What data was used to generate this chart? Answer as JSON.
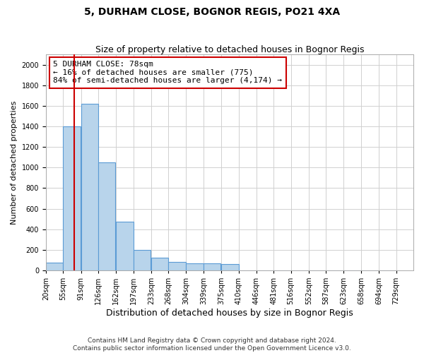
{
  "title": "5, DURHAM CLOSE, BOGNOR REGIS, PO21 4XA",
  "subtitle": "Size of property relative to detached houses in Bognor Regis",
  "xlabel": "Distribution of detached houses by size in Bognor Regis",
  "ylabel": "Number of detached properties",
  "footer_line1": "Contains HM Land Registry data © Crown copyright and database right 2024.",
  "footer_line2": "Contains public sector information licensed under the Open Government Licence v3.0.",
  "annotation_line1": "5 DURHAM CLOSE: 78sqm",
  "annotation_line2": "← 16% of detached houses are smaller (775)",
  "annotation_line3": "84% of semi-detached houses are larger (4,174) →",
  "property_size": 78,
  "bar_color": "#b8d4eb",
  "bar_edge_color": "#5b9bd5",
  "redline_color": "#cc0000",
  "annotation_box_edge": "#cc0000",
  "bin_starts": [
    20,
    55,
    91,
    126,
    162,
    197,
    233,
    268,
    304,
    339,
    375,
    410,
    446,
    481,
    516,
    552,
    587,
    623,
    658,
    694
  ],
  "bin_width": 35,
  "categories": [
    "20sqm",
    "55sqm",
    "91sqm",
    "126sqm",
    "162sqm",
    "197sqm",
    "233sqm",
    "268sqm",
    "304sqm",
    "339sqm",
    "375sqm",
    "410sqm",
    "446sqm",
    "481sqm",
    "516sqm",
    "552sqm",
    "587sqm",
    "623sqm",
    "658sqm",
    "694sqm",
    "729sqm"
  ],
  "tick_positions": [
    20,
    55,
    91,
    126,
    162,
    197,
    233,
    268,
    304,
    339,
    375,
    410,
    446,
    481,
    516,
    552,
    587,
    623,
    658,
    694,
    729
  ],
  "values": [
    75,
    1400,
    1620,
    1050,
    470,
    200,
    120,
    85,
    70,
    65,
    60,
    0,
    0,
    0,
    0,
    0,
    0,
    0,
    0,
    0
  ],
  "ylim": [
    0,
    2100
  ],
  "yticks": [
    0,
    200,
    400,
    600,
    800,
    1000,
    1200,
    1400,
    1600,
    1800,
    2000
  ],
  "xlim_min": 20,
  "xlim_max": 764,
  "background_color": "#ffffff",
  "grid_color": "#d0d0d0",
  "title_fontsize": 10,
  "subtitle_fontsize": 9,
  "ylabel_fontsize": 8,
  "xlabel_fontsize": 9,
  "tick_fontsize": 7,
  "annotation_fontsize": 8,
  "footer_fontsize": 6.5
}
